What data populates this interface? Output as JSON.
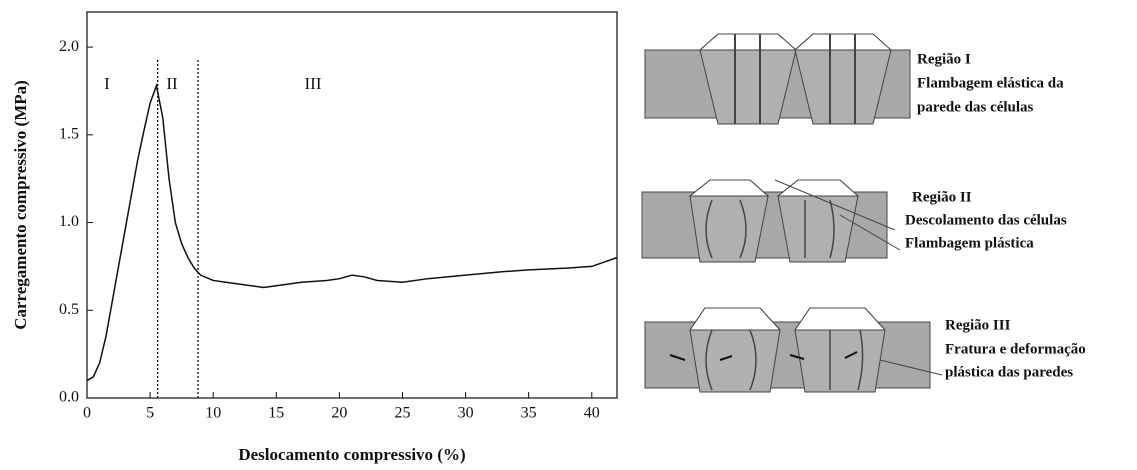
{
  "chart_data": {
    "type": "line",
    "x_label": "Deslocamento compressivo (%)",
    "y_label": "Carregamento compressivo (MPa)",
    "x": [
      0,
      0.5,
      1,
      1.5,
      2,
      2.5,
      3,
      3.5,
      4,
      4.5,
      5,
      5.5,
      6,
      6.5,
      7,
      7.5,
      8,
      8.5,
      9,
      10,
      11,
      12,
      13,
      14,
      15,
      17,
      19,
      20,
      21,
      22,
      23,
      25,
      27,
      30,
      33,
      35,
      38,
      40,
      42
    ],
    "series": [
      {
        "color": "#111111",
        "values": [
          0.1,
          0.12,
          0.2,
          0.35,
          0.55,
          0.75,
          0.95,
          1.15,
          1.35,
          1.52,
          1.68,
          1.78,
          1.6,
          1.25,
          1.0,
          0.88,
          0.8,
          0.74,
          0.7,
          0.67,
          0.66,
          0.65,
          0.64,
          0.63,
          0.64,
          0.66,
          0.67,
          0.68,
          0.7,
          0.69,
          0.67,
          0.66,
          0.68,
          0.7,
          0.72,
          0.73,
          0.74,
          0.75,
          0.8
        ]
      }
    ],
    "xlim": [
      0,
      42
    ],
    "ylim": [
      0,
      2.2
    ],
    "xticks": [
      0,
      5,
      10,
      15,
      20,
      25,
      30,
      35,
      40
    ],
    "yticks": [
      {
        "value": 0,
        "label": "0.0"
      },
      {
        "value": 0.5,
        "label": "0.5"
      },
      {
        "value": 1,
        "label": "1.0"
      },
      {
        "value": 1.5,
        "label": "1.5"
      },
      {
        "value": 2,
        "label": "2.0"
      }
    ],
    "boundaries": [
      5.6,
      8.8
    ],
    "regions": [
      "I",
      "II",
      "III"
    ]
  },
  "diagram": {
    "panels": [
      {
        "lines": [
          "Região I",
          "Flambagem elástica da",
          "parede das células"
        ]
      },
      {
        "lines": [
          "Região II",
          "Descolamento das células",
          "Flambagem plástica"
        ]
      },
      {
        "lines": [
          "Região III",
          "Fratura  e deformação",
          "plástica das paredes"
        ]
      }
    ]
  }
}
